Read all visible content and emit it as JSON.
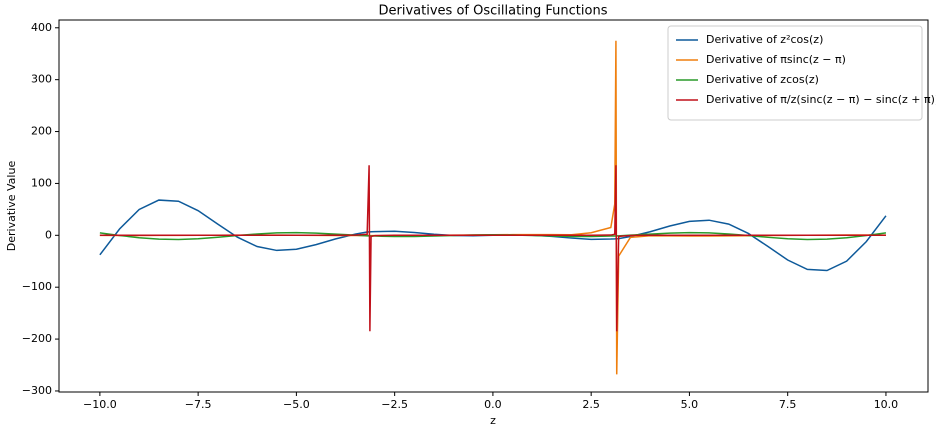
{
  "chart_data": {
    "type": "line",
    "title": "Derivatives of Oscillating Functions",
    "x_label": "z",
    "y_label": "Derivative Value",
    "x": [
      -10,
      -9.5,
      -9,
      -8.5,
      -8,
      -7.5,
      -7,
      -6.5,
      -6,
      -5.5,
      -5,
      -4.5,
      -4,
      -3.5,
      -3.2,
      -3.15,
      -3.13,
      -3.1,
      -3,
      -2.5,
      -2,
      -1.5,
      -1,
      -0.5,
      0,
      0.5,
      1,
      1.5,
      2,
      2.5,
      3,
      3.1,
      3.13,
      3.15,
      3.2,
      3.5,
      4,
      4.5,
      5,
      5.5,
      6,
      6.5,
      7,
      7.5,
      8,
      8.5,
      9,
      9.5,
      10
    ],
    "series": [
      {
        "name": "Derivative of z²cos(z)",
        "color": "#0e5a9a",
        "values": [
          -37.62,
          12.17,
          49.78,
          67.92,
          65.65,
          47.56,
          21.64,
          -3.61,
          -21.58,
          -29.14,
          -26.81,
          -17.89,
          -6.88,
          2.26,
          6.3,
          6.6,
          6.7,
          6.9,
          7.21,
          7.75,
          5.3,
          2.03,
          -0.24,
          -0.76,
          0,
          0.76,
          0.24,
          -2.03,
          -5.3,
          -7.75,
          -7.21,
          -6.9,
          -6.7,
          -6.6,
          -6.3,
          -2.26,
          6.88,
          17.89,
          26.81,
          29.14,
          21.58,
          3.61,
          -21.64,
          -47.56,
          -65.65,
          -67.92,
          -49.78,
          -12.17,
          37.62
        ]
      },
      {
        "name": "Derivative of πsinc(z − π)",
        "color": "#ef7f0e",
        "values": [
          -0.19,
          -0.25,
          -0.24,
          -0.18,
          -0.07,
          0.08,
          0.21,
          0.31,
          0.34,
          0.29,
          0.15,
          -0.03,
          -0.24,
          -0.42,
          -0.49,
          -0.5,
          -0.5,
          -0.51,
          -0.52,
          -0.51,
          -0.36,
          -0.1,
          0.26,
          0.64,
          1.0,
          1.26,
          1.37,
          1.3,
          1.05,
          5,
          15,
          60,
          375,
          -268,
          -40,
          -4,
          -0.84,
          -1.18,
          -1.35,
          -1.34,
          -1.16,
          -0.85,
          -0.48,
          -0.09,
          0.23,
          0.44,
          0.53,
          0.49,
          0.35
        ]
      },
      {
        "name": "Derivative of zcos(z)",
        "color": "#2a9a2a",
        "values": [
          4.6,
          -0.28,
          -4.62,
          -7.39,
          -8.06,
          -6.69,
          -3.85,
          -0.42,
          2.64,
          4.59,
          5.08,
          4.19,
          2.37,
          0.29,
          -1.0,
          -1.1,
          -1.15,
          -1.2,
          -1.41,
          -2.3,
          -2.24,
          -1.43,
          -0.3,
          0.64,
          1,
          0.64,
          -0.3,
          -1.43,
          -2.24,
          -2.3,
          -1.41,
          -1.2,
          -1.15,
          -1.1,
          -1.0,
          0.29,
          2.37,
          4.19,
          5.08,
          4.59,
          2.64,
          -0.42,
          -3.85,
          -6.69,
          -8.06,
          -7.39,
          -4.62,
          -0.28,
          4.6
        ]
      },
      {
        "name": "Derivative of π/z(sinc(z − π) − sinc(z + π))",
        "color": "#c0101a",
        "values": [
          0,
          0,
          0,
          0,
          0,
          0,
          0,
          0,
          0,
          0,
          0,
          0,
          0,
          0.3,
          2,
          135,
          -185,
          -2,
          -0.5,
          0,
          0,
          0,
          0,
          0,
          0,
          0,
          0,
          0,
          0,
          0,
          0.5,
          2,
          135,
          -185,
          -2,
          -0.3,
          0,
          0,
          0,
          0,
          0,
          0,
          0,
          0,
          0,
          0,
          0,
          0,
          0
        ]
      }
    ],
    "xlim": [
      -11.04,
      11.07
    ],
    "ylim": [
      -302,
      415
    ],
    "xticks": [
      {
        "value": -10,
        "label": "−10.0"
      },
      {
        "value": -7.5,
        "label": "−7.5"
      },
      {
        "value": -5,
        "label": "−5.0"
      },
      {
        "value": -2.5,
        "label": "−2.5"
      },
      {
        "value": 0,
        "label": "0.0"
      },
      {
        "value": 2.5,
        "label": "2.5"
      },
      {
        "value": 5,
        "label": "5.0"
      },
      {
        "value": 7.5,
        "label": "7.5"
      },
      {
        "value": 10,
        "label": "10.0"
      }
    ],
    "yticks": [
      {
        "value": -300,
        "label": "−300"
      },
      {
        "value": -200,
        "label": "−200"
      },
      {
        "value": -100,
        "label": "−100"
      },
      0,
      100,
      200,
      300,
      400
    ],
    "legend_loc": "upper right"
  }
}
